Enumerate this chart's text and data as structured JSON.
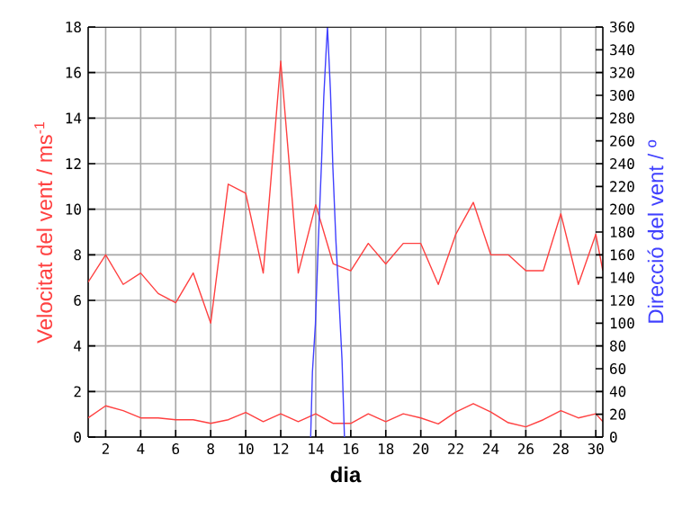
{
  "chart_data": {
    "type": "line",
    "xlabel": "dia",
    "ylabel": "Velocitat del vent / ms$^{-1}$",
    "y2label": "Direcció del vent / º",
    "xlim": [
      1,
      30.4
    ],
    "xticks": [
      2,
      4,
      6,
      8,
      10,
      12,
      14,
      16,
      18,
      20,
      22,
      24,
      26,
      28,
      30
    ],
    "ylim": [
      0,
      18
    ],
    "yticks": [
      0,
      2,
      4,
      6,
      8,
      10,
      12,
      14,
      16,
      18
    ],
    "y2lim": [
      0,
      360
    ],
    "y2ticks": [
      0,
      20,
      40,
      60,
      80,
      100,
      120,
      140,
      160,
      180,
      200,
      220,
      240,
      260,
      280,
      300,
      320,
      340,
      360
    ],
    "grid": true,
    "marker": "none",
    "line_style": "solid",
    "series": [
      {
        "color": "#ff4040",
        "x": [
          1,
          2,
          3,
          4,
          5,
          6,
          7,
          8,
          9,
          10,
          11,
          12,
          13,
          14,
          15,
          16,
          17,
          18,
          19,
          20,
          21,
          22,
          23,
          24,
          25,
          26,
          27,
          28,
          29,
          30,
          30.4
        ],
        "values": [
          6.8,
          8.0,
          6.7,
          7.2,
          6.3,
          5.9,
          7.2,
          5.0,
          11.1,
          10.7,
          7.2,
          16.5,
          7.2,
          10.2,
          7.6,
          7.3,
          8.5,
          7.6,
          8.5,
          8.5,
          6.7,
          8.9,
          10.3,
          8.0,
          8.0,
          7.3,
          7.3,
          9.8,
          6.7,
          8.9,
          7.3
        ]
      },
      {
        "color": "#ff4040",
        "x": [
          1,
          2,
          3,
          4,
          5,
          6,
          7,
          8,
          9,
          10,
          11,
          12,
          13,
          14,
          15,
          16,
          17,
          18,
          19,
          20,
          21,
          22,
          23,
          24,
          25,
          26,
          27,
          28,
          29,
          30,
          30.4
        ],
        "values": [
          0.84,
          1.37,
          1.16,
          0.84,
          0.84,
          0.76,
          0.76,
          0.6,
          0.76,
          1.08,
          0.68,
          1.02,
          0.68,
          1.02,
          0.6,
          0.6,
          1.02,
          0.68,
          1.02,
          0.84,
          0.58,
          1.1,
          1.47,
          1.1,
          0.63,
          0.45,
          0.76,
          1.16,
          0.84,
          1.02,
          0.68
        ]
      },
      {
        "color": "#4040ff",
        "axis": "y2",
        "x": [
          13.71,
          13.81,
          13.98,
          14.15,
          14.33,
          14.46,
          14.6,
          14.67,
          14.84,
          14.98,
          15.15,
          15.33,
          15.5,
          15.64
        ],
        "values": [
          0,
          57,
          99,
          173,
          241,
          299,
          341,
          360,
          304,
          236,
          173,
          120,
          68,
          0
        ]
      }
    ]
  }
}
